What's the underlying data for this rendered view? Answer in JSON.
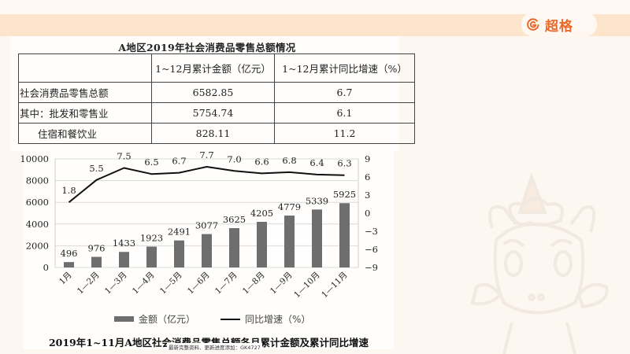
{
  "header": {
    "brand_name": "超格",
    "brand_icon": "brand-g-logo-icon",
    "accent_color": "#e76a2c",
    "bar_color": "#fde5cc"
  },
  "table": {
    "title": "A地区2019年社会消费品零售总额情况",
    "columns": [
      "",
      "1~12月累计金额（亿元）",
      "1~12月累计同比增速（%）"
    ],
    "rows": [
      {
        "label": "社会消费品零售总额",
        "amount": "6582.85",
        "growth": "6.7"
      },
      {
        "label": "其中：批发和零售业",
        "amount": "5754.74",
        "growth": "6.1"
      },
      {
        "label": "住宿和餐饮业",
        "amount": "828.11",
        "growth": "11.2"
      }
    ]
  },
  "chart_data": {
    "type": "bar",
    "title": "2019年1~11月A地区社会消费品零售总额各月累计金额及累计同比增速",
    "categories": [
      "1月",
      "1—2月",
      "1—3月",
      "1—4月",
      "1—5月",
      "1—6月",
      "1—7月",
      "1—8月",
      "1—9月",
      "1—10月",
      "1—11月"
    ],
    "series": [
      {
        "name": "金额（亿元）",
        "type": "bar",
        "axis": "left",
        "color": "#6e6e6e",
        "values": [
          496,
          976,
          1433,
          1923,
          2491,
          3077,
          3625,
          4205,
          4779,
          5339,
          5925
        ]
      },
      {
        "name": "同比增速（%）",
        "type": "line",
        "axis": "right",
        "color": "#111111",
        "values": [
          1.8,
          5.5,
          7.5,
          6.5,
          6.7,
          7.7,
          7.0,
          6.6,
          6.8,
          6.4,
          6.3
        ]
      }
    ],
    "left_axis": {
      "ylim": [
        0,
        10000
      ],
      "ticks": [
        0,
        2000,
        4000,
        6000,
        8000,
        10000
      ]
    },
    "right_axis": {
      "ylim": [
        -9,
        9
      ],
      "ticks": [
        -9,
        -6,
        -3,
        0,
        3,
        6,
        9
      ],
      "tick_labels": [
        "−9",
        "−6",
        "−3",
        "0",
        "3",
        "6",
        "9"
      ]
    },
    "grid": true,
    "legend_position": "bottom",
    "xlabel": "",
    "ylabel": ""
  },
  "legend": {
    "bar_label": "金额（亿元）",
    "line_label": "同比增速（%）"
  },
  "overlay_note": "最新完整资料、更新进度添加：GK4727"
}
